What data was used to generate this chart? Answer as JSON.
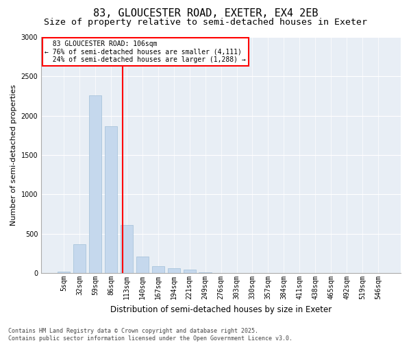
{
  "title": "83, GLOUCESTER ROAD, EXETER, EX4 2EB",
  "subtitle": "Size of property relative to semi-detached houses in Exeter",
  "xlabel": "Distribution of semi-detached houses by size in Exeter",
  "ylabel": "Number of semi-detached properties",
  "categories": [
    "5sqm",
    "32sqm",
    "59sqm",
    "86sqm",
    "113sqm",
    "140sqm",
    "167sqm",
    "194sqm",
    "221sqm",
    "249sqm",
    "276sqm",
    "303sqm",
    "330sqm",
    "357sqm",
    "384sqm",
    "411sqm",
    "438sqm",
    "465sqm",
    "492sqm",
    "519sqm",
    "546sqm"
  ],
  "values": [
    15,
    370,
    2260,
    1870,
    610,
    210,
    90,
    65,
    45,
    10,
    0,
    0,
    0,
    0,
    0,
    0,
    0,
    0,
    0,
    0,
    0
  ],
  "bar_color": "#c5d8ed",
  "bar_edge_color": "#a0bfd8",
  "property_label": "83 GLOUCESTER ROAD: 106sqm",
  "pct_smaller": 76,
  "n_smaller": 4111,
  "pct_larger": 24,
  "n_larger": 1288,
  "vline_color": "red",
  "annotation_box_color": "red",
  "ylim": [
    0,
    3000
  ],
  "yticks": [
    0,
    500,
    1000,
    1500,
    2000,
    2500,
    3000
  ],
  "background_color": "#e8eef5",
  "grid_color": "white",
  "footer_line1": "Contains HM Land Registry data © Crown copyright and database right 2025.",
  "footer_line2": "Contains public sector information licensed under the Open Government Licence v3.0.",
  "title_fontsize": 11,
  "subtitle_fontsize": 9.5,
  "xlabel_fontsize": 8.5,
  "ylabel_fontsize": 8,
  "tick_fontsize": 7,
  "footer_fontsize": 6,
  "vline_x_index": 3.74
}
